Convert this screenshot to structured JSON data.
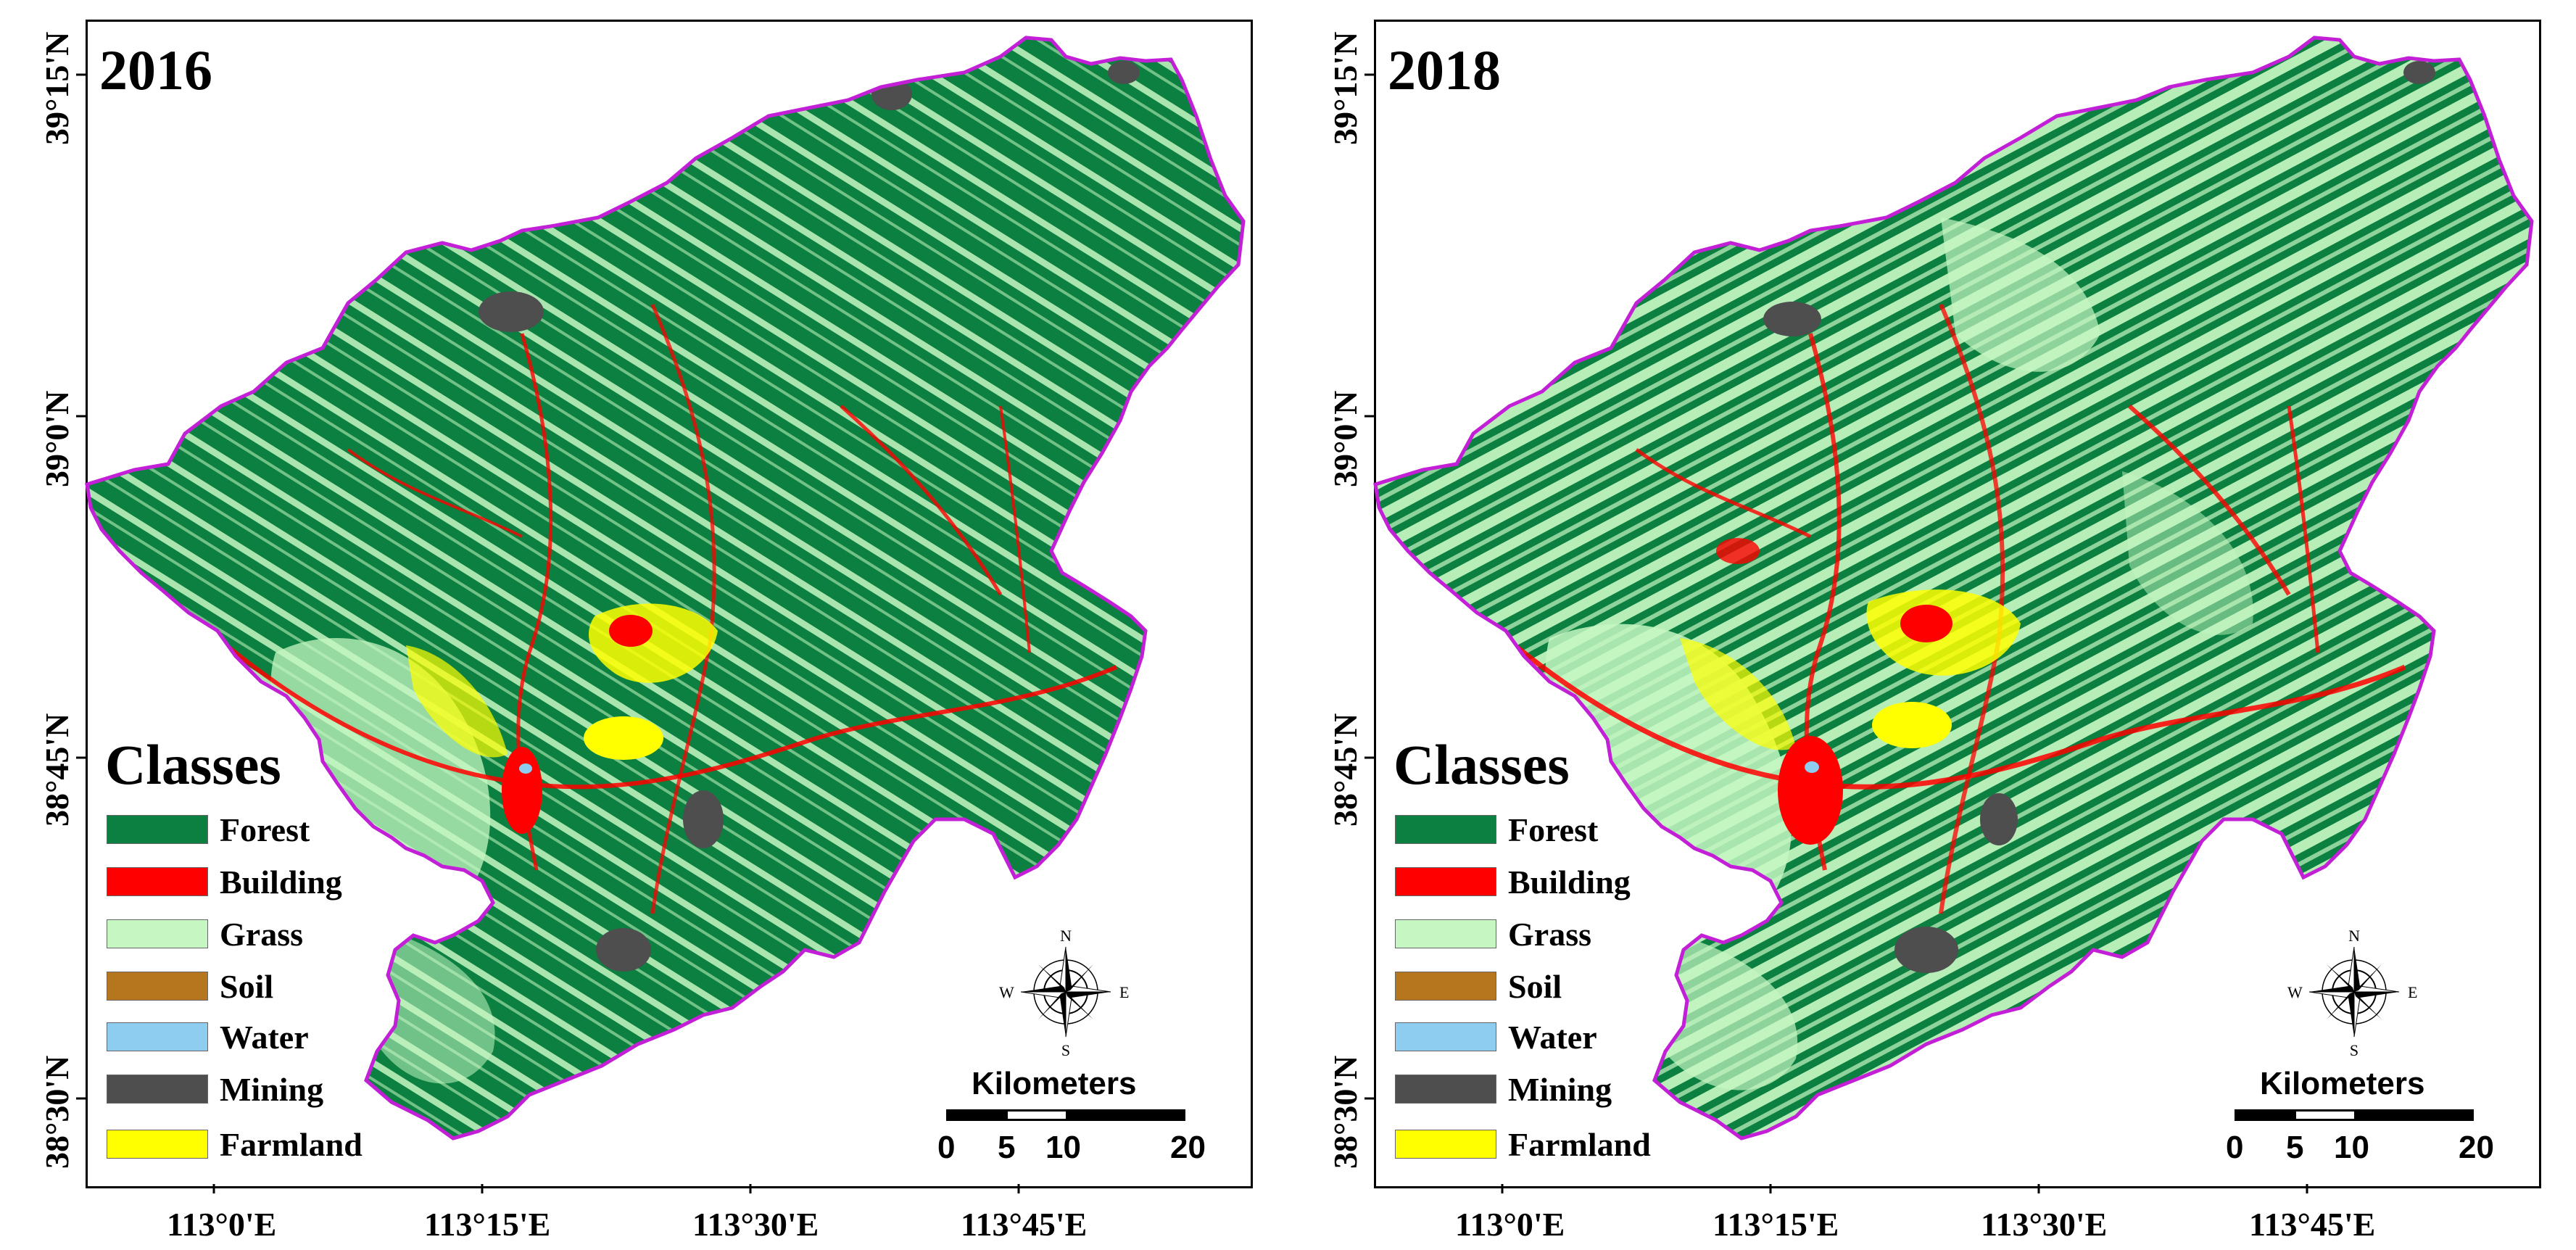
{
  "panels": [
    {
      "year": "2016",
      "variant": "forest-dominant",
      "lat_labels": [
        "39°15'N",
        "39°0'N",
        "38°45'N",
        "38°30'N"
      ],
      "lon_labels": [
        "113°0'E",
        "113°15'E",
        "113°30'E",
        "113°45'E"
      ],
      "legend_title": "Classes",
      "legend": [
        {
          "label": "Forest",
          "color": "#0b8040"
        },
        {
          "label": "Building",
          "color": "#ff0000"
        },
        {
          "label": "Grass",
          "color": "#c6f7c2"
        },
        {
          "label": "Soil",
          "color": "#b5761e"
        },
        {
          "label": "Water",
          "color": "#8ecdf0"
        },
        {
          "label": "Mining",
          "color": "#4e4e4e"
        },
        {
          "label": "Farmland",
          "color": "#ffff00"
        }
      ],
      "scale": {
        "title": "Kilometers",
        "ticks": [
          "0",
          "5",
          "10",
          "20"
        ]
      },
      "compass": {
        "n": "N",
        "s": "S",
        "e": "E",
        "w": "W"
      }
    },
    {
      "year": "2018",
      "variant": "grass-expanded",
      "lat_labels": [
        "39°15'N",
        "39°0'N",
        "38°45'N",
        "38°30'N"
      ],
      "lon_labels": [
        "113°0'E",
        "113°15'E",
        "113°30'E",
        "113°45'E"
      ],
      "legend_title": "Classes",
      "legend": [
        {
          "label": "Forest",
          "color": "#0b8040"
        },
        {
          "label": "Building",
          "color": "#ff0000"
        },
        {
          "label": "Grass",
          "color": "#c6f7c2"
        },
        {
          "label": "Soil",
          "color": "#b5761e"
        },
        {
          "label": "Water",
          "color": "#8ecdf0"
        },
        {
          "label": "Mining",
          "color": "#4e4e4e"
        },
        {
          "label": "Farmland",
          "color": "#ffff00"
        }
      ],
      "scale": {
        "title": "Kilometers",
        "ticks": [
          "0",
          "5",
          "10",
          "20"
        ]
      },
      "compass": {
        "n": "N",
        "s": "S",
        "e": "E",
        "w": "W"
      }
    }
  ],
  "colors": {
    "boundary": "#c21fd6",
    "forest": "#0b8040",
    "grass": "#c6f7c2",
    "building": "#ff0000",
    "farmland": "#ffff00",
    "mining": "#4e4e4e",
    "water": "#8ecdf0"
  }
}
